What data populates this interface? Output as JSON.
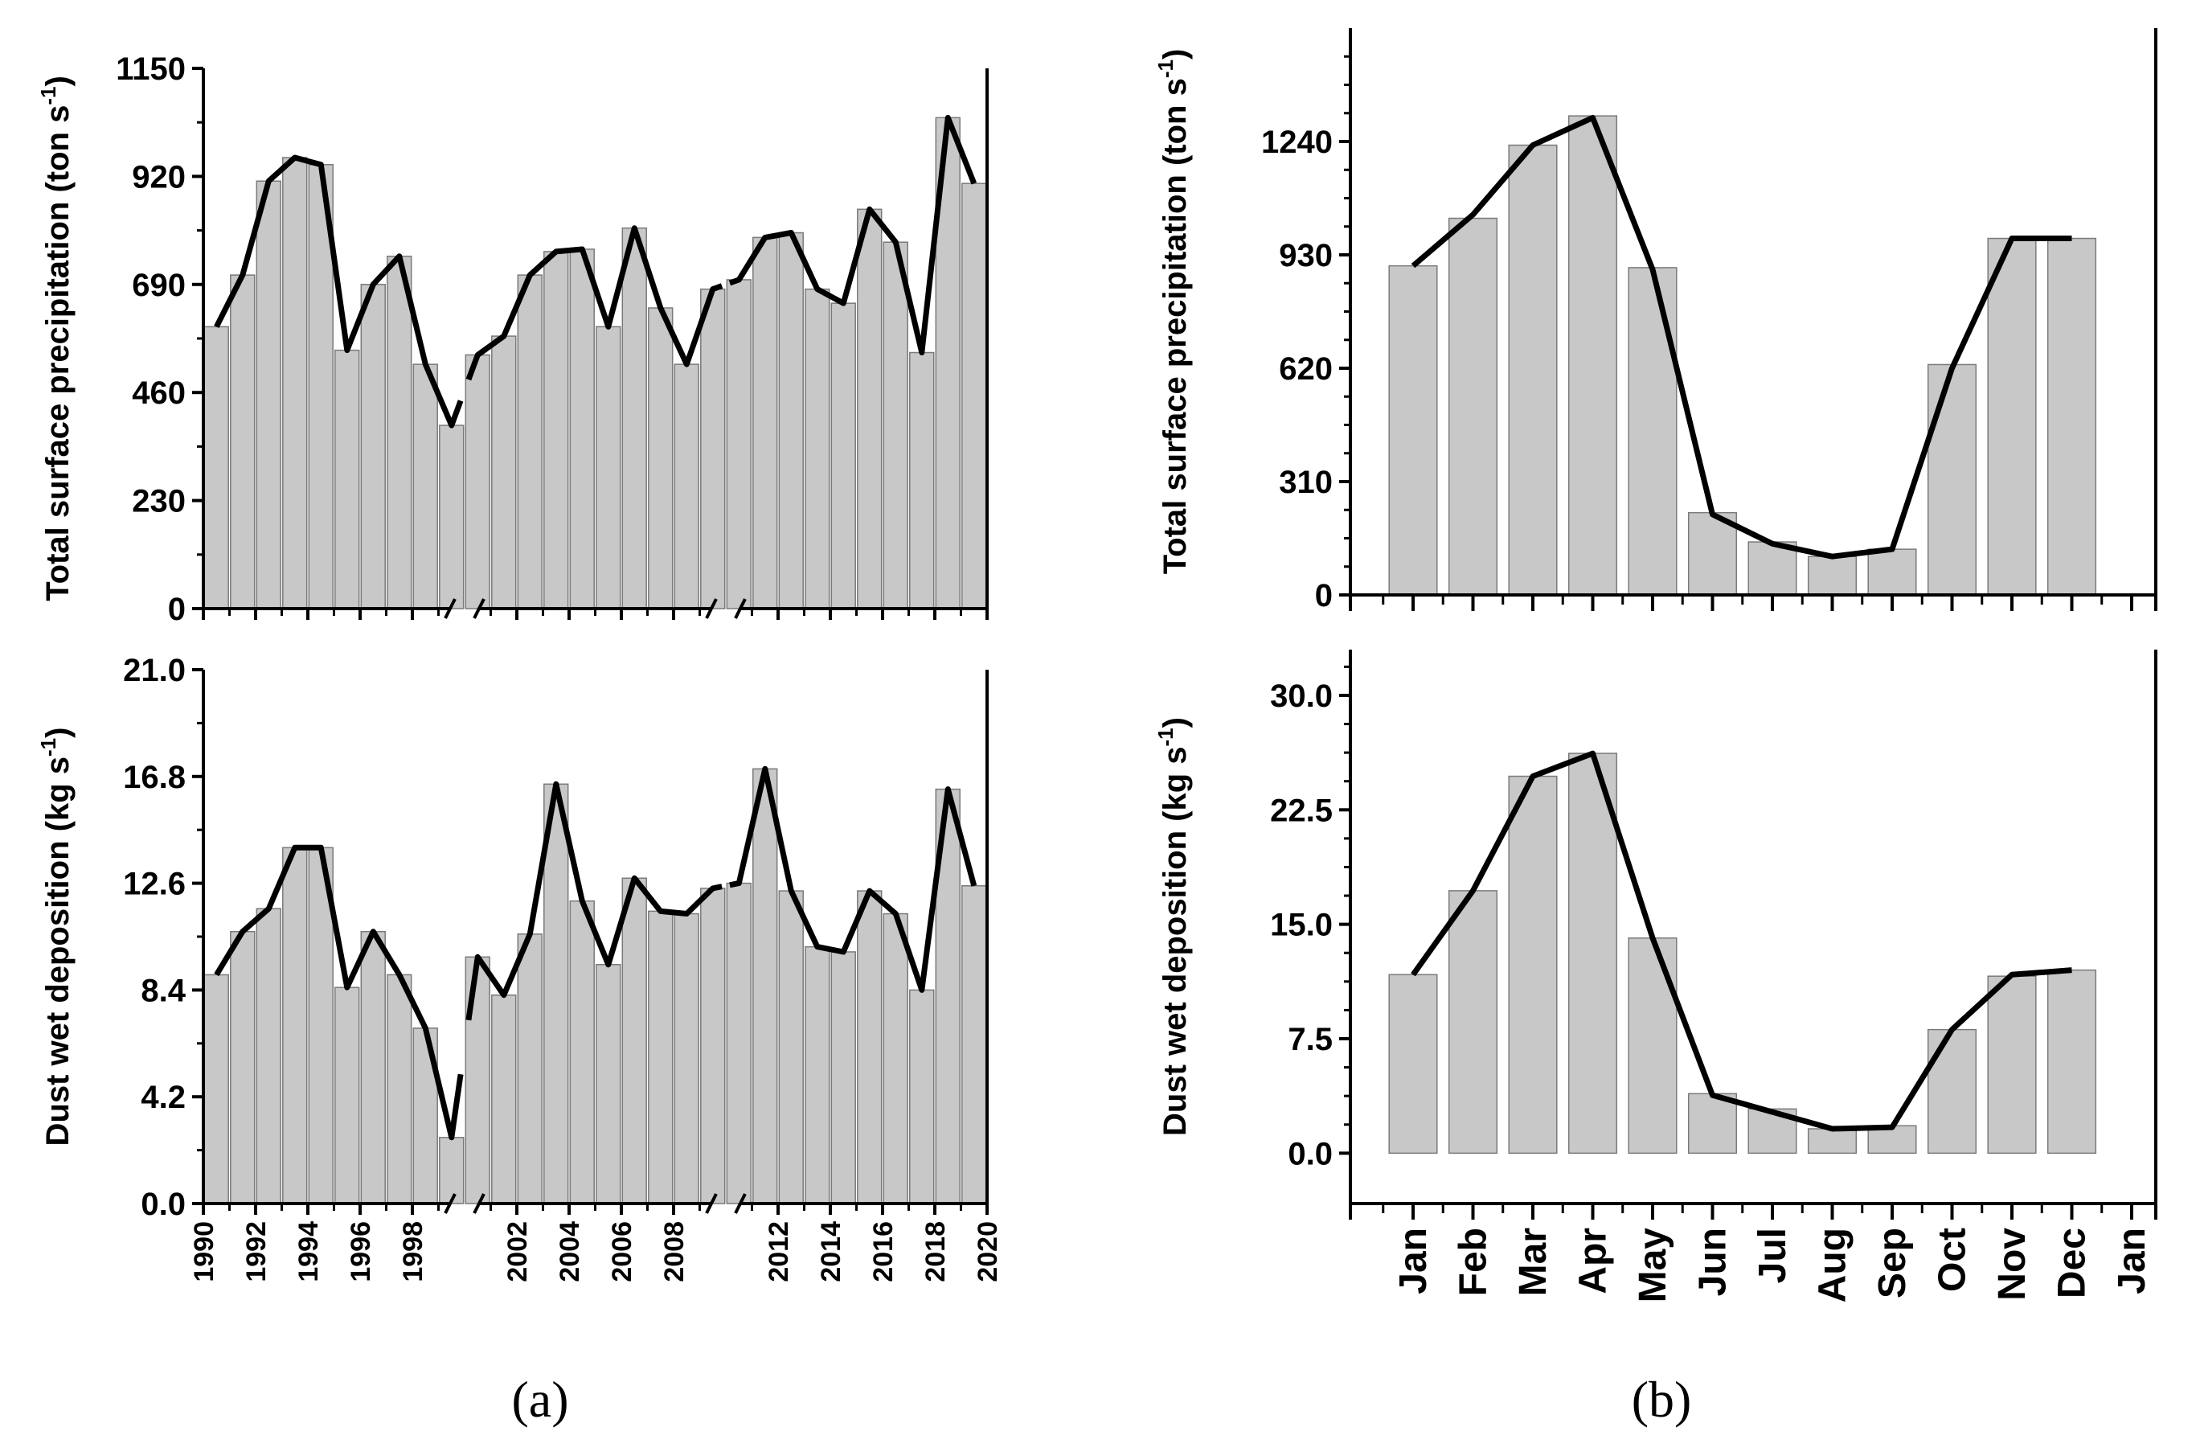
{
  "chart_data": [
    {
      "id": "a-top",
      "type": "bar",
      "panel": "a",
      "ylabel": "Total surface precipitation (ton s-1)",
      "ylabel_main": "Total surface precipitation (ton s",
      "ylabel_sup": "-1",
      "ylabel_tail": ")",
      "ylim": [
        0,
        1150
      ],
      "yticks": [
        "0",
        "230",
        "460",
        "690",
        "920",
        "1150"
      ],
      "x": [
        1990,
        1991,
        1992,
        1993,
        1994,
        1995,
        1996,
        1997,
        1998,
        1999,
        2000,
        2001,
        2002,
        2003,
        2004,
        2005,
        2006,
        2007,
        2008,
        2009,
        2010,
        2011,
        2012,
        2013,
        2014,
        2015,
        2016,
        2017,
        2018,
        2019
      ],
      "segments": [
        [
          0,
          9
        ],
        [
          10,
          19
        ],
        [
          20,
          29
        ]
      ],
      "values": [
        600,
        710,
        910,
        960,
        945,
        550,
        690,
        750,
        520,
        390,
        540,
        580,
        710,
        760,
        765,
        600,
        810,
        640,
        520,
        680,
        700,
        790,
        800,
        680,
        650,
        850,
        780,
        545,
        1045,
        905
      ],
      "line": [
        600,
        710,
        910,
        960,
        945,
        550,
        690,
        750,
        520,
        390,
        540,
        580,
        710,
        760,
        765,
        600,
        810,
        640,
        520,
        680,
        700,
        790,
        800,
        680,
        650,
        850,
        780,
        545,
        1045,
        905
      ]
    },
    {
      "id": "a-bottom",
      "type": "bar",
      "panel": "a",
      "ylabel": "Dust wet deposition (kg s-1)",
      "ylabel_main": "Dust wet deposition  (kg s",
      "ylabel_sup": "-1",
      "ylabel_tail": ")",
      "ylim": [
        0,
        21
      ],
      "yticks": [
        "0.0",
        "4.2",
        "8.4",
        "12.6",
        "16.8",
        "21.0"
      ],
      "xticks": [
        "1990",
        "1992",
        "1994",
        "1996",
        "1998",
        "2002",
        "2004",
        "2006",
        "2008",
        "2012",
        "2014",
        "2016",
        "2018",
        "2020"
      ],
      "x": [
        1990,
        1991,
        1992,
        1993,
        1994,
        1995,
        1996,
        1997,
        1998,
        1999,
        2000,
        2001,
        2002,
        2003,
        2004,
        2005,
        2006,
        2007,
        2008,
        2009,
        2010,
        2011,
        2012,
        2013,
        2014,
        2015,
        2016,
        2017,
        2018,
        2019
      ],
      "segments": [
        [
          0,
          9
        ],
        [
          10,
          19
        ],
        [
          20,
          29
        ]
      ],
      "values": [
        9.0,
        10.7,
        11.6,
        14.0,
        14.0,
        8.5,
        10.7,
        9.0,
        6.9,
        2.6,
        9.7,
        8.2,
        10.6,
        16.5,
        11.9,
        9.4,
        12.8,
        11.5,
        11.4,
        12.4,
        12.6,
        17.1,
        12.3,
        10.1,
        9.9,
        12.3,
        11.4,
        8.4,
        16.3,
        12.5
      ],
      "line": [
        9.0,
        10.7,
        11.6,
        14.0,
        14.0,
        8.5,
        10.7,
        9.0,
        6.9,
        2.6,
        9.7,
        8.2,
        10.6,
        16.5,
        11.9,
        9.4,
        12.8,
        11.5,
        11.4,
        12.4,
        12.6,
        17.1,
        12.3,
        10.1,
        9.9,
        12.3,
        11.4,
        8.4,
        16.3,
        12.5
      ]
    },
    {
      "id": "b-top",
      "type": "bar",
      "panel": "b",
      "ylabel": "Total surface precipitation (ton s-1)",
      "ylabel_main": "Total surface precipitation (ton s",
      "ylabel_sup": "-1",
      "ylabel_tail": ")",
      "ylim": [
        0,
        1550
      ],
      "yticks": [
        "0",
        "310",
        "620",
        "930",
        "1240"
      ],
      "categories": [
        "Jan",
        "Feb",
        "Mar",
        "Apr",
        "May",
        "Jun",
        "Jul",
        "Aug",
        "Sep",
        "Oct",
        "Nov",
        "Dec"
      ],
      "values": [
        900,
        1030,
        1230,
        1310,
        895,
        225,
        145,
        105,
        125,
        630,
        975,
        975
      ],
      "line": [
        900,
        1040,
        1230,
        1305,
        890,
        220,
        140,
        105,
        125,
        620,
        975,
        975
      ]
    },
    {
      "id": "b-bottom",
      "type": "bar",
      "panel": "b",
      "ylabel": "Dust wet deposition (kg s-1)",
      "ylabel_main": "Dust wet deposition  (kg s",
      "ylabel_sup": "-1",
      "ylabel_tail": ")",
      "ylim": [
        -3.3,
        33
      ],
      "yticks": [
        "0.0",
        "7.5",
        "15.0",
        "22.5",
        "30.0"
      ],
      "categories": [
        "Jan",
        "Feb",
        "Mar",
        "Apr",
        "May",
        "Jun",
        "Jul",
        "Aug",
        "Sep",
        "Oct",
        "Nov",
        "Dec"
      ],
      "xticks": [
        "Jan",
        "Feb",
        "Mar",
        "Apr",
        "May",
        "Jun",
        "Jul",
        "Aug",
        "Sep",
        "Oct",
        "Nov",
        "Dec",
        "Jan"
      ],
      "values": [
        11.7,
        17.2,
        24.7,
        26.2,
        14.1,
        3.9,
        2.9,
        1.6,
        1.8,
        8.1,
        11.6,
        12.0
      ],
      "line": [
        11.7,
        17.2,
        24.7,
        26.2,
        14.1,
        3.8,
        2.7,
        1.6,
        1.7,
        8.1,
        11.7,
        12.0
      ]
    }
  ],
  "panel_labels": {
    "a": "(a)",
    "b": "(b)"
  }
}
